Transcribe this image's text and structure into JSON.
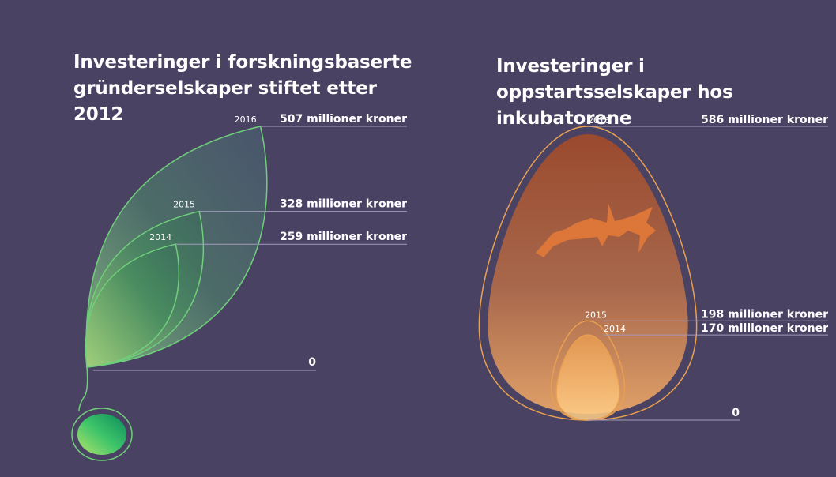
{
  "chart_data": [
    {
      "type": "area",
      "title": "Investeringer i forskningsbaserte gründerselskaper stiftet etter 2012",
      "series_color": "#6fcf7a",
      "zero_label": "0",
      "points": [
        {
          "year": "2014",
          "value": 259,
          "label": "259 millioner kroner"
        },
        {
          "year": "2015",
          "value": 328,
          "label": "328 millioner kroner"
        },
        {
          "year": "2016",
          "value": 507,
          "label": "507 millioner kroner"
        }
      ]
    },
    {
      "type": "area",
      "title": "Investeringer i oppstartsselskaper hos inkubatorene",
      "series_color": "#e8a050",
      "zero_label": "0",
      "points": [
        {
          "year": "2014",
          "value": 170,
          "label": "170 millioner kroner"
        },
        {
          "year": "2015",
          "value": 198,
          "label": "198 millioner kroner"
        },
        {
          "year": "2016",
          "value": 586,
          "label": "586 millioner kroner"
        }
      ]
    }
  ]
}
